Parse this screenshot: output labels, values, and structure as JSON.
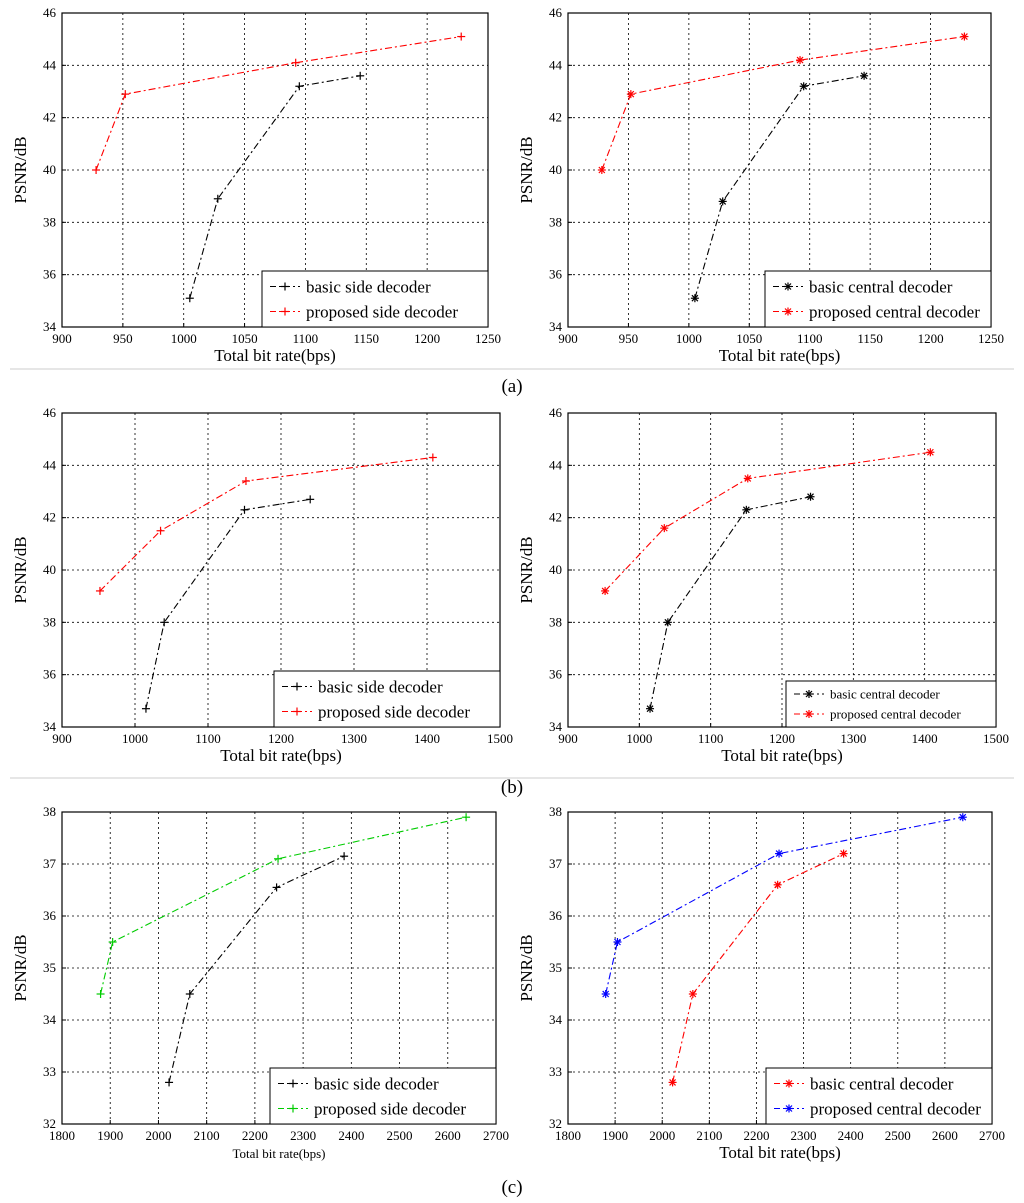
{
  "chart_data": [
    {
      "type": "line",
      "panel": "a",
      "side": "left",
      "xlim": [
        900,
        1250
      ],
      "ylim": [
        34,
        46
      ],
      "xtick_step": 50,
      "ytick_step": 2,
      "xlabel": "Total bit rate(bps)",
      "ylabel": "PSNR/dB",
      "xlabel_small": false,
      "grid": true,
      "legend_position": "lower-right",
      "legend_small": false,
      "series": [
        {
          "name": "basic side decoder",
          "color": "#000000",
          "marker": "+",
          "x": [
            1005,
            1028,
            1095,
            1145
          ],
          "y": [
            35.1,
            38.9,
            43.2,
            43.6
          ]
        },
        {
          "name": "proposed side decoder",
          "color": "#ff0000",
          "marker": "+",
          "x": [
            928,
            952,
            1092,
            1228
          ],
          "y": [
            40.0,
            42.9,
            44.1,
            45.1
          ]
        }
      ]
    },
    {
      "type": "line",
      "panel": "a",
      "side": "right",
      "xlim": [
        900,
        1250
      ],
      "ylim": [
        34,
        46
      ],
      "xtick_step": 50,
      "ytick_step": 2,
      "xlabel": "Total bit rate(bps)",
      "ylabel": "PSNR/dB",
      "xlabel_small": false,
      "grid": true,
      "legend_position": "lower-right",
      "legend_small": false,
      "series": [
        {
          "name": "basic central decoder",
          "color": "#000000",
          "marker": "*",
          "x": [
            1005,
            1028,
            1095,
            1145
          ],
          "y": [
            35.1,
            38.8,
            43.2,
            43.6
          ]
        },
        {
          "name": "proposed central decoder",
          "color": "#ff0000",
          "marker": "*",
          "x": [
            928,
            952,
            1092,
            1228
          ],
          "y": [
            40.0,
            42.9,
            44.2,
            45.1
          ]
        }
      ]
    },
    {
      "type": "line",
      "panel": "b",
      "side": "left",
      "xlim": [
        900,
        1500
      ],
      "ylim": [
        34,
        46
      ],
      "xtick_step": 100,
      "ytick_step": 2,
      "xlabel": "Total bit rate(bps)",
      "ylabel": "PSNR/dB",
      "xlabel_small": false,
      "grid": true,
      "legend_position": "lower-right",
      "legend_small": false,
      "series": [
        {
          "name": "basic side decoder",
          "color": "#000000",
          "marker": "+",
          "x": [
            1015,
            1040,
            1150,
            1240
          ],
          "y": [
            34.7,
            38.0,
            42.3,
            42.7
          ]
        },
        {
          "name": "proposed side decoder",
          "color": "#ff0000",
          "marker": "+",
          "x": [
            952,
            1035,
            1152,
            1408
          ],
          "y": [
            39.2,
            41.5,
            43.4,
            44.3
          ]
        }
      ]
    },
    {
      "type": "line",
      "panel": "b",
      "side": "right",
      "xlim": [
        900,
        1500
      ],
      "ylim": [
        34,
        46
      ],
      "xtick_step": 100,
      "ytick_step": 2,
      "xlabel": "Total bit rate(bps)",
      "ylabel": "PSNR/dB",
      "xlabel_small": false,
      "grid": true,
      "legend_position": "lower-right",
      "legend_small": true,
      "series": [
        {
          "name": "basic central decoder",
          "color": "#000000",
          "marker": "*",
          "x": [
            1015,
            1040,
            1150,
            1240
          ],
          "y": [
            34.7,
            38.0,
            42.3,
            42.8
          ]
        },
        {
          "name": "proposed central decoder",
          "color": "#ff0000",
          "marker": "*",
          "x": [
            952,
            1035,
            1152,
            1408
          ],
          "y": [
            39.2,
            41.6,
            43.5,
            44.5
          ]
        }
      ]
    },
    {
      "type": "line",
      "panel": "c",
      "side": "left",
      "xlim": [
        1800,
        2700
      ],
      "ylim": [
        32,
        38
      ],
      "xtick_step": 100,
      "ytick_step": 1,
      "xlabel": "Total bit rate(bps)",
      "ylabel": "PSNR/dB",
      "xlabel_small": true,
      "grid": true,
      "legend_position": "lower-right",
      "legend_small": false,
      "series": [
        {
          "name": "basic side decoder",
          "color": "#000000",
          "marker": "+",
          "x": [
            2022,
            2065,
            2245,
            2385
          ],
          "y": [
            32.8,
            34.5,
            36.55,
            37.15
          ]
        },
        {
          "name": "proposed side decoder",
          "color": "#00cc00",
          "marker": "+",
          "x": [
            1880,
            1905,
            2248,
            2638
          ],
          "y": [
            34.5,
            35.5,
            37.1,
            37.9
          ]
        }
      ]
    },
    {
      "type": "line",
      "panel": "c",
      "side": "right",
      "xlim": [
        1800,
        2700
      ],
      "ylim": [
        32,
        38
      ],
      "xtick_step": 100,
      "ytick_step": 1,
      "xlabel": "Total bit rate(bps)",
      "ylabel": "PSNR/dB",
      "xlabel_small": false,
      "grid": true,
      "legend_position": "lower-right",
      "legend_small": false,
      "series": [
        {
          "name": "basic central decoder",
          "color": "#ff0000",
          "marker": "*",
          "x": [
            2022,
            2065,
            2245,
            2385
          ],
          "y": [
            32.8,
            34.5,
            36.6,
            37.2
          ]
        },
        {
          "name": "proposed central decoder",
          "color": "#0000ff",
          "marker": "*",
          "x": [
            1880,
            1905,
            2248,
            2638
          ],
          "y": [
            34.5,
            35.5,
            37.2,
            37.9
          ]
        }
      ]
    }
  ],
  "panel_labels": {
    "a": "(a)",
    "b": "(b)",
    "c": "(c)"
  }
}
